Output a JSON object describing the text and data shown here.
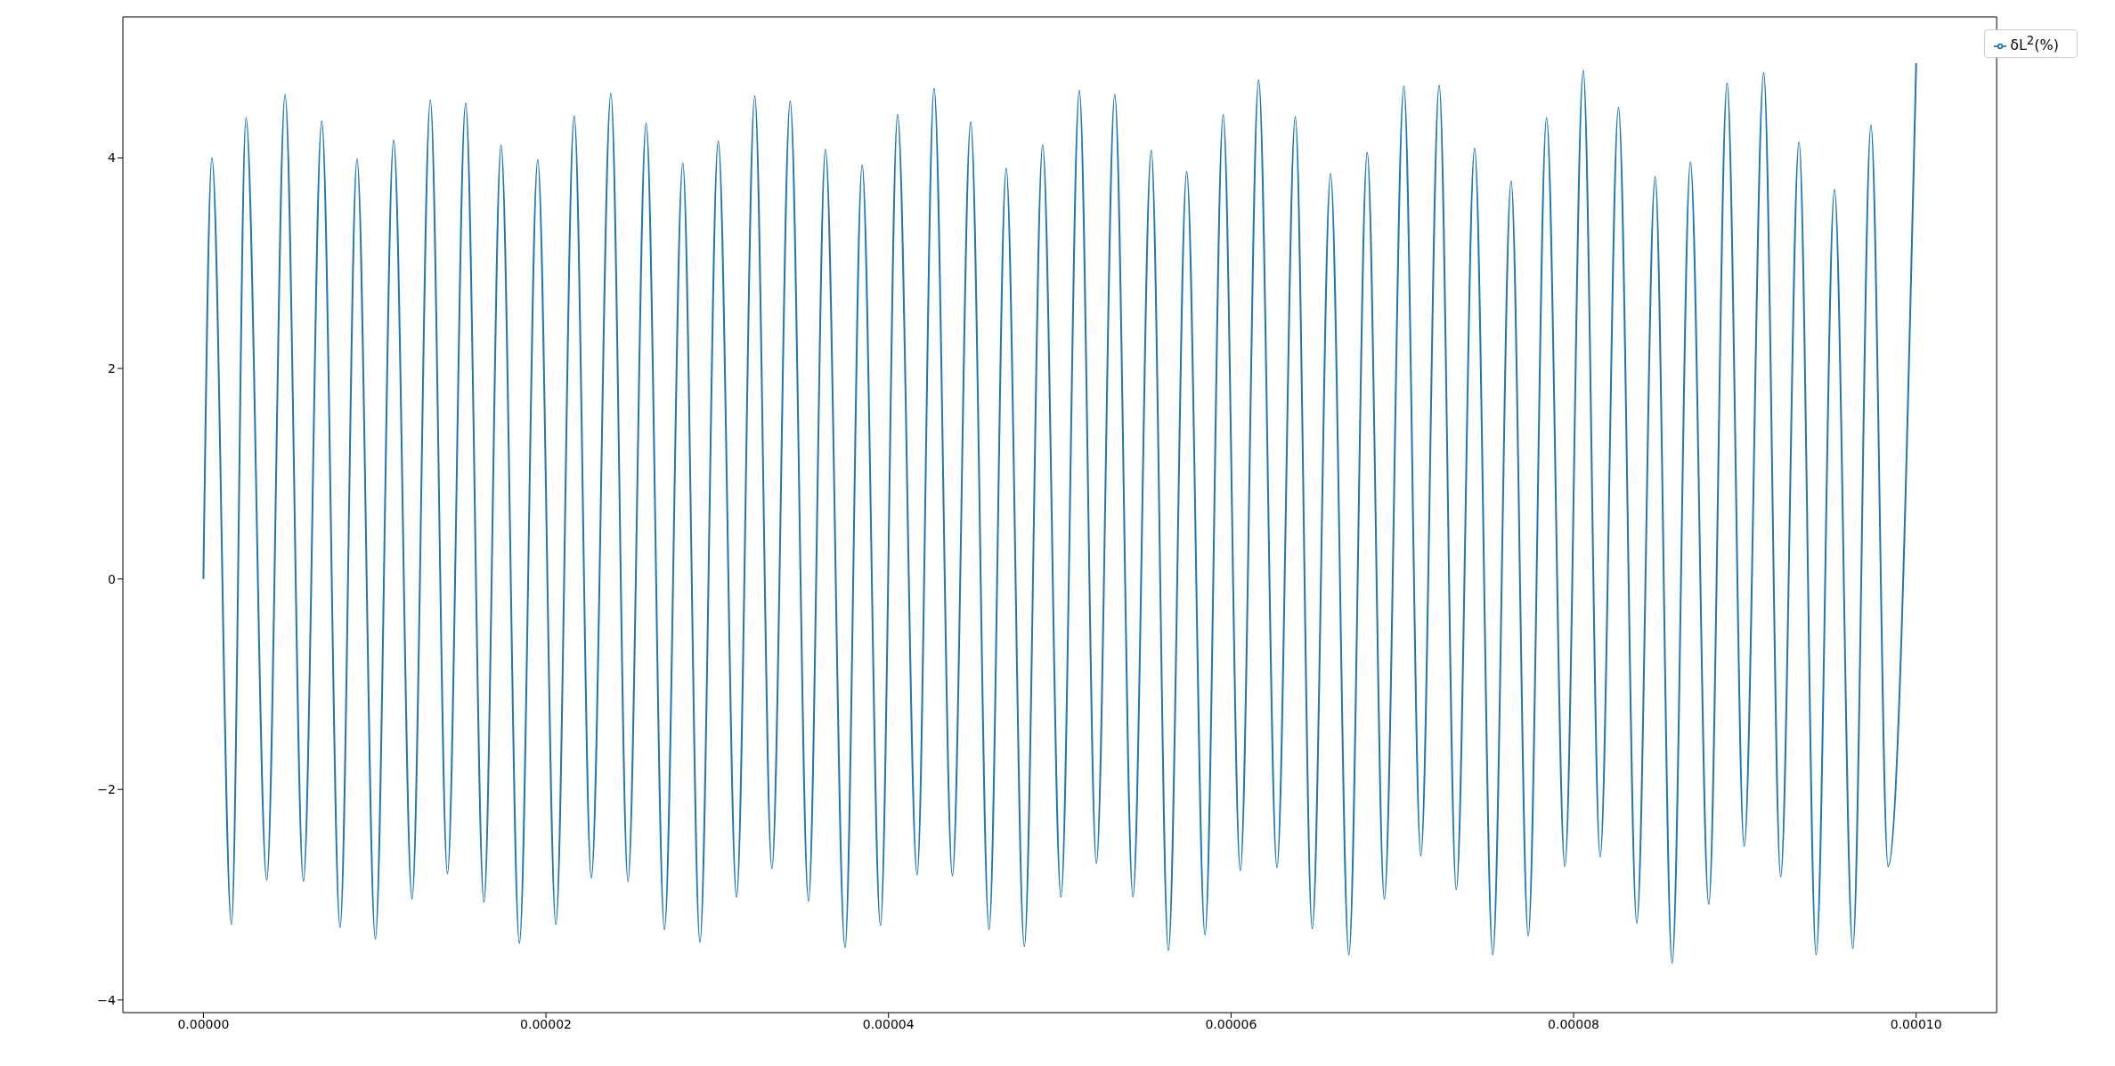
{
  "chart_data": {
    "type": "line",
    "legend": "top right",
    "marker": "none",
    "line_style": "solid",
    "xlim": [
      -4.7e-06,
      0.0001047
    ],
    "xticks": [
      {
        "value": 0,
        "label": "0.00000"
      },
      {
        "value": 2e-05,
        "label": "0.00002"
      },
      {
        "value": 4e-05,
        "label": "0.00004"
      },
      {
        "value": 6e-05,
        "label": "0.00006"
      },
      {
        "value": 8e-05,
        "label": "0.00008"
      },
      {
        "value": 0.0001,
        "label": "0.00010"
      }
    ],
    "ylim": [
      -4.12,
      5.34
    ],
    "yticks": [
      -4,
      -2,
      0,
      2,
      4
    ],
    "x": [
      0,
      5e-07,
      1.64e-06,
      2.49e-06,
      3.7e-06,
      4.77e-06,
      5.84e-06,
      6.91e-06,
      7.98e-06,
      8.97e-06,
      1.004e-05,
      1.111e-05,
      1.218e-05,
      1.325e-05,
      1.425e-05,
      1.531e-05,
      1.638e-05,
      1.738e-05,
      1.845e-05,
      1.952e-05,
      2.058e-05,
      2.165e-05,
      2.265e-05,
      2.379e-05,
      2.479e-05,
      2.585e-05,
      2.692e-05,
      2.799e-05,
      2.899e-05,
      3.006e-05,
      3.113e-05,
      3.219e-05,
      3.319e-05,
      3.426e-05,
      3.533e-05,
      3.632e-05,
      3.746e-05,
      3.846e-05,
      3.953e-05,
      4.053e-05,
      4.167e-05,
      4.266e-05,
      4.373e-05,
      4.48e-05,
      4.587e-05,
      4.687e-05,
      4.793e-05,
      4.9e-05,
      5.007e-05,
      5.114e-05,
      5.214e-05,
      5.321e-05,
      5.427e-05,
      5.534e-05,
      5.634e-05,
      5.741e-05,
      5.848e-05,
      5.954e-05,
      6.054e-05,
      6.161e-05,
      6.268e-05,
      6.375e-05,
      6.474e-05,
      6.581e-05,
      6.688e-05,
      6.795e-05,
      6.895e-05,
      7.009e-05,
      7.108e-05,
      7.215e-05,
      7.315e-05,
      7.422e-05,
      7.528e-05,
      7.635e-05,
      7.735e-05,
      7.842e-05,
      7.949e-05,
      8.056e-05,
      8.155e-05,
      8.262e-05,
      8.369e-05,
      8.476e-05,
      8.575e-05,
      8.682e-05,
      8.789e-05,
      8.896e-05,
      8.996e-05,
      9.11e-05,
      9.209e-05,
      9.316e-05,
      9.416e-05,
      9.523e-05,
      9.63e-05,
      9.736e-05,
      9.836e-05,
      0.0001
    ],
    "series": [
      {
        "name": "δL$^{2}$(%)",
        "color": "#1f77b4",
        "values": [
          0,
          4.0,
          -3.28,
          4.38,
          -2.86,
          4.6,
          -2.87,
          4.35,
          -3.31,
          3.99,
          -3.42,
          4.17,
          -3.04,
          4.55,
          -2.8,
          4.52,
          -3.07,
          4.12,
          -3.46,
          3.98,
          -3.28,
          4.4,
          -2.84,
          4.61,
          -2.87,
          4.33,
          -3.33,
          3.95,
          -3.45,
          4.16,
          -3.02,
          4.59,
          -2.75,
          4.54,
          -3.06,
          4.08,
          -3.5,
          3.93,
          -3.29,
          4.41,
          -2.81,
          4.66,
          -2.82,
          4.34,
          -3.33,
          3.9,
          -3.49,
          4.12,
          -3.02,
          4.64,
          -2.7,
          4.6,
          -3.02,
          4.07,
          -3.53,
          3.87,
          -3.38,
          4.41,
          -2.77,
          4.74,
          -2.74,
          4.39,
          -3.32,
          3.85,
          -3.57,
          4.05,
          -3.04,
          4.68,
          -2.63,
          4.69,
          -2.95,
          4.09,
          -3.57,
          3.78,
          -3.39,
          4.38,
          -2.73,
          4.83,
          -2.64,
          4.48,
          -3.27,
          3.82,
          -3.65,
          3.96,
          -3.09,
          4.71,
          -2.54,
          4.81,
          -2.83,
          4.15,
          -3.57,
          3.7,
          -3.51,
          4.31,
          -2.73,
          4.9
        ]
      }
    ]
  }
}
